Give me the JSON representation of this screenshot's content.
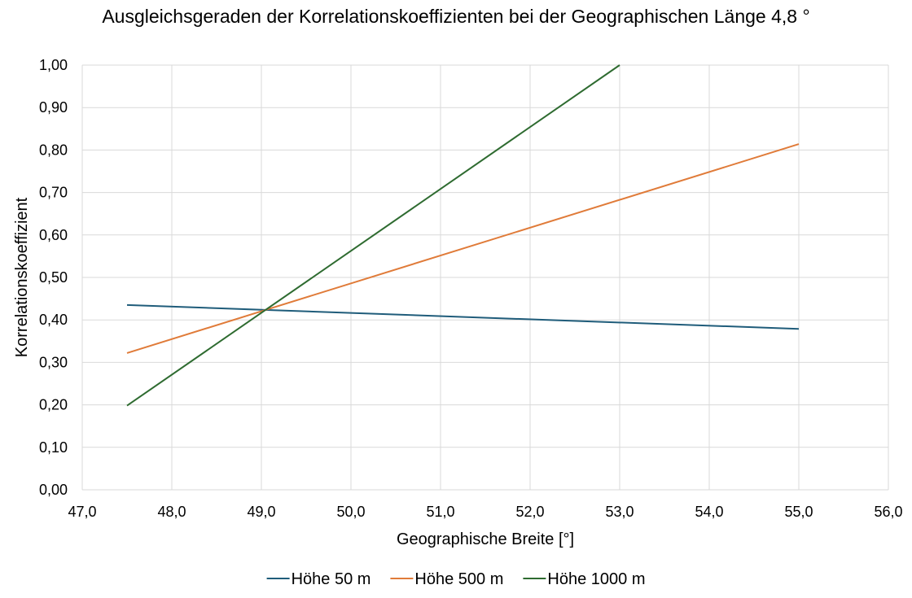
{
  "chart_data": {
    "type": "line",
    "title": "Ausgleichsgeraden der Korrelationskoeffizienten bei der Geographischen Länge 4,8 °",
    "xlabel": "Geographische Breite [°]",
    "ylabel": "Korrelationskoeffizient",
    "xlim": [
      47.0,
      56.0
    ],
    "ylim": [
      0.0,
      1.0
    ],
    "x_ticks": [
      "47,0",
      "48,0",
      "49,0",
      "50,0",
      "51,0",
      "52,0",
      "53,0",
      "54,0",
      "55,0",
      "56,0"
    ],
    "y_ticks": [
      "0,00",
      "0,10",
      "0,20",
      "0,30",
      "0,40",
      "0,50",
      "0,60",
      "0,70",
      "0,80",
      "0,90",
      "1,00"
    ],
    "grid": true,
    "legend_position": "bottom",
    "series": [
      {
        "name": "Höhe 50 m",
        "color": "#1f5c7a",
        "x": [
          47.5,
          55.0
        ],
        "y": [
          0.435,
          0.379
        ]
      },
      {
        "name": "Höhe 500 m",
        "color": "#e07b39",
        "x": [
          47.5,
          55.0
        ],
        "y": [
          0.322,
          0.814
        ]
      },
      {
        "name": "Höhe 1000 m",
        "color": "#2e6b30",
        "x": [
          47.5,
          53.0
        ],
        "y": [
          0.198,
          1.0
        ]
      }
    ]
  }
}
